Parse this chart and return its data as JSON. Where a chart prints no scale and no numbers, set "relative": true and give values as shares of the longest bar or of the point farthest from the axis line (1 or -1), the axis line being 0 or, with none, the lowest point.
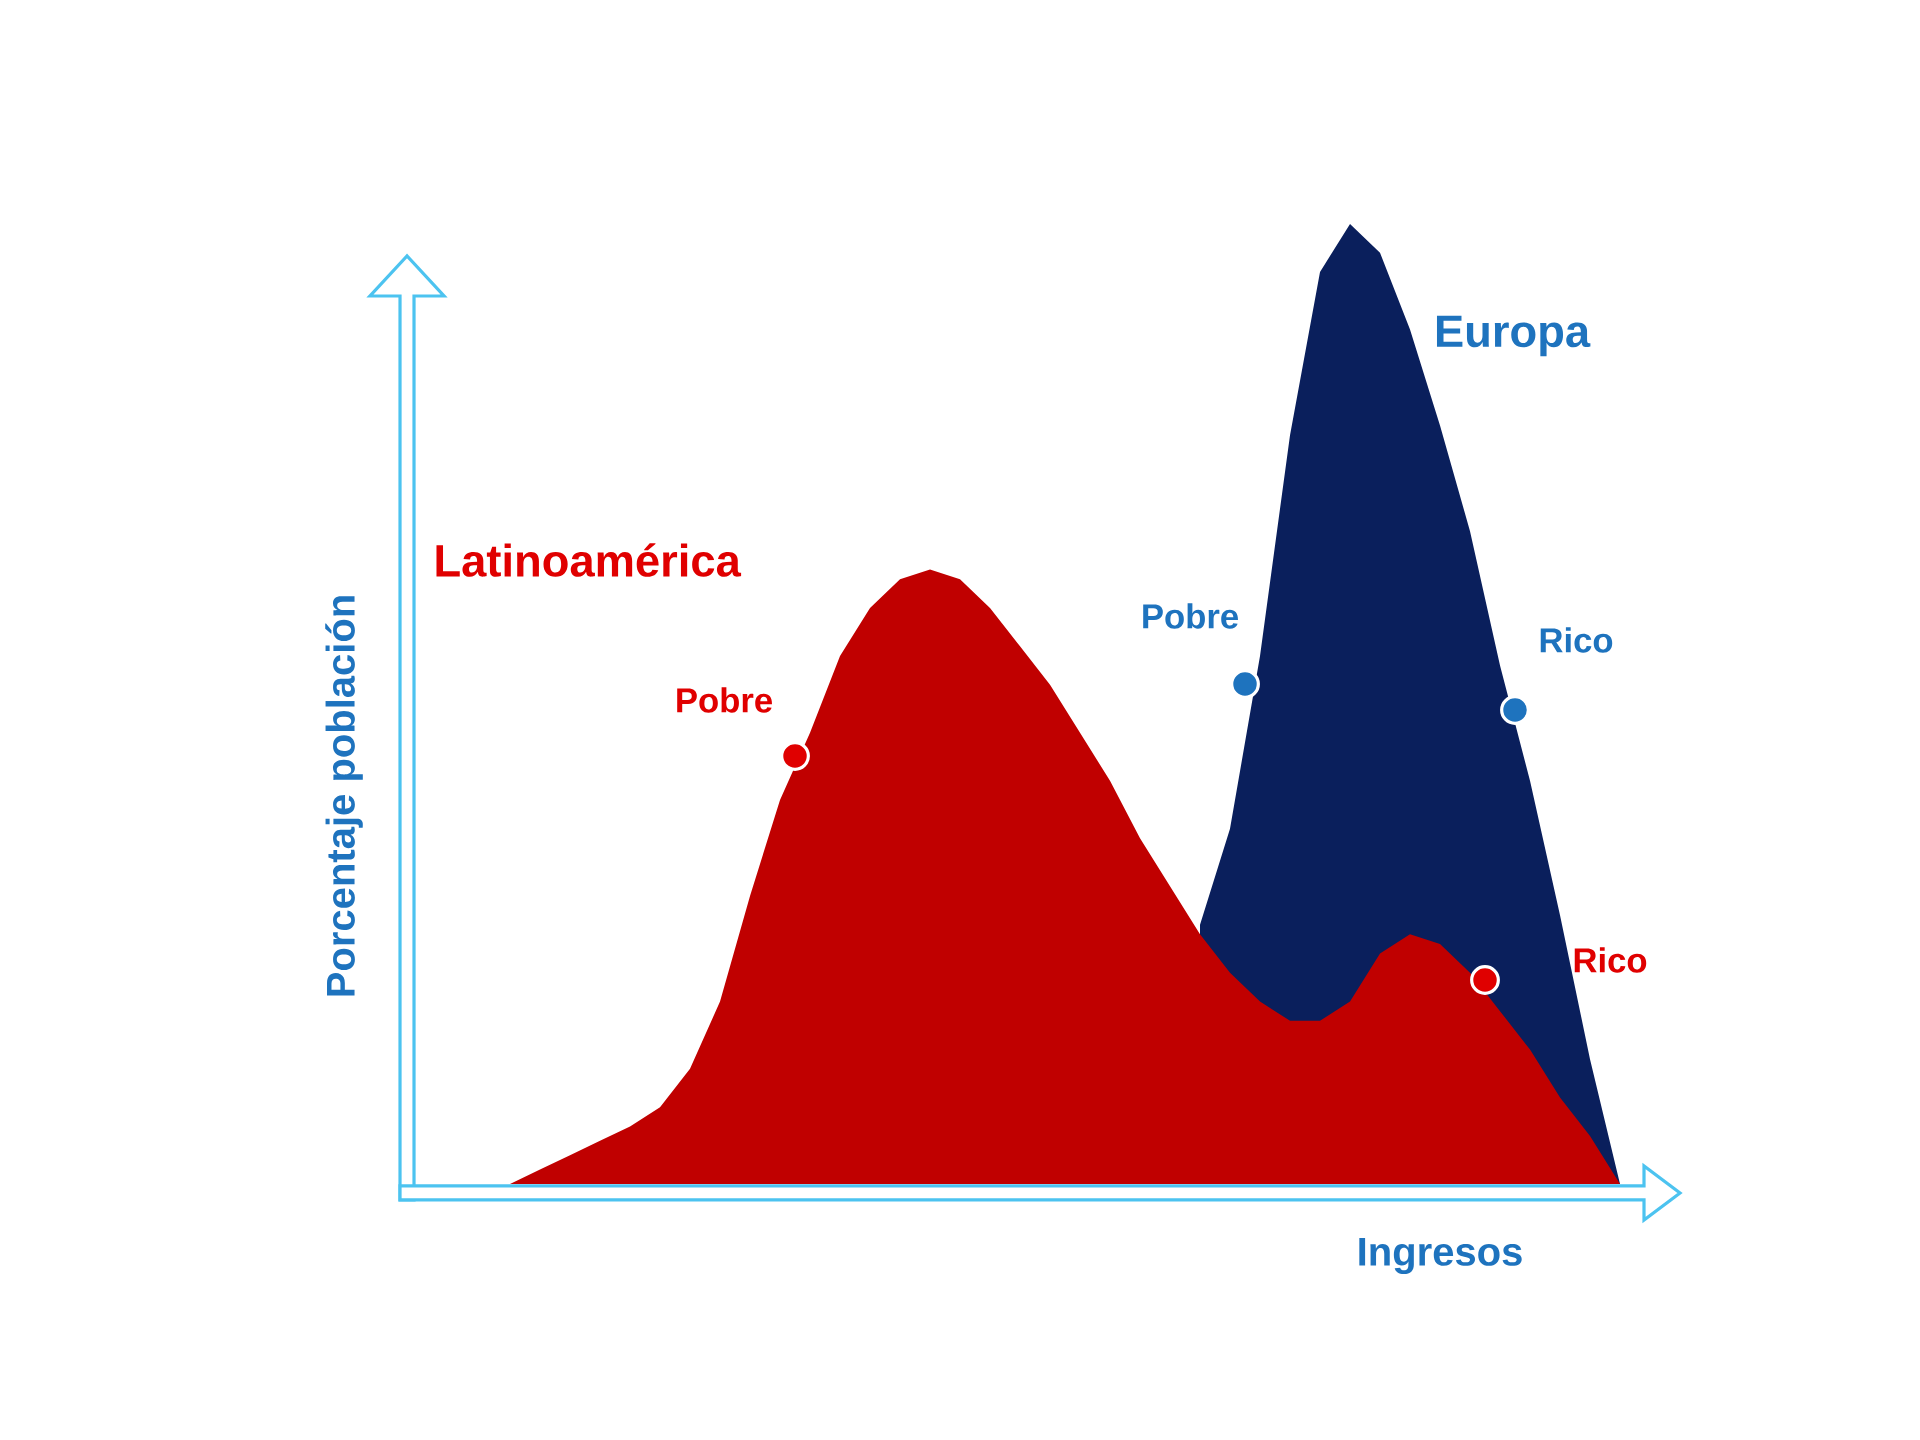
{
  "chart_data": {
    "type": "area",
    "relative": true,
    "xlabel": "Ingresos",
    "ylabel": "Porcentaje población",
    "categories": [
      null,
      null,
      null,
      null,
      null,
      null,
      null,
      null,
      null,
      null,
      null,
      null,
      null,
      null,
      null,
      null,
      null,
      null,
      null,
      null,
      null,
      null,
      null,
      null,
      null,
      null,
      null,
      null,
      null,
      null,
      null,
      null,
      null,
      null,
      null,
      null,
      null,
      null
    ],
    "series": [
      {
        "name": "Europa",
        "color": "#0a1f5c",
        "values": [
          null,
          null,
          null,
          null,
          null,
          null,
          null,
          null,
          null,
          null,
          null,
          null,
          null,
          null,
          null,
          null,
          null,
          null,
          null,
          null,
          null,
          null,
          null,
          0.27,
          0.37,
          0.55,
          0.78,
          0.95,
          1,
          0.97,
          0.89,
          0.79,
          0.68,
          0.54,
          0.42,
          0.28,
          0.13,
          0
        ]
      },
      {
        "name": "Latinoamérica",
        "color": "#c00000",
        "values": [
          0,
          0.015,
          0.03,
          0.045,
          0.06,
          0.08,
          0.12,
          0.19,
          0.3,
          0.4,
          0.47,
          0.55,
          0.6,
          0.63,
          0.64,
          0.63,
          0.6,
          0.56,
          0.52,
          0.47,
          0.42,
          0.36,
          0.31,
          0.26,
          0.22,
          0.19,
          0.17,
          0.17,
          0.19,
          0.24,
          0.26,
          0.25,
          0.22,
          0.18,
          0.14,
          0.09,
          0.05,
          0
        ]
      }
    ],
    "annotations": [
      "Pobre",
      "Rico",
      "Pobre",
      "Rico"
    ]
  }
}
